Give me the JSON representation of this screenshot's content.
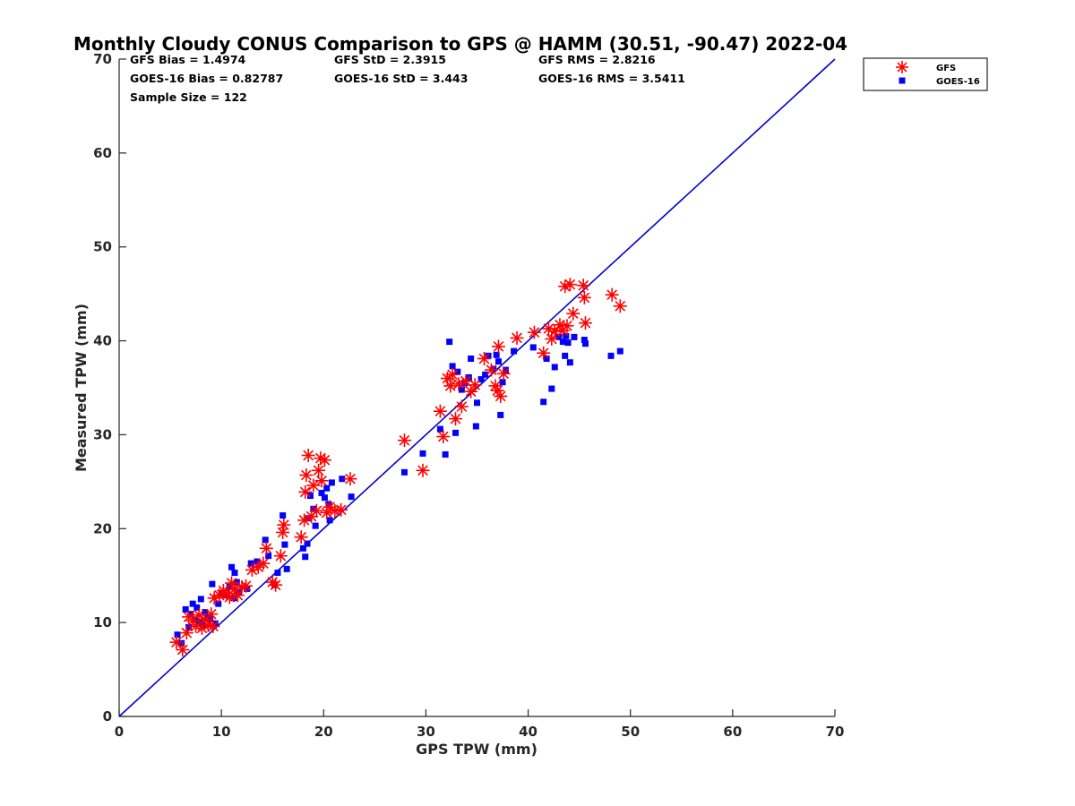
{
  "chart_data": {
    "type": "scatter",
    "title": "Monthly Cloudy CONUS Comparison to GPS @ HAMM (30.51, -90.47) 2022-04",
    "xlabel": "GPS TPW (mm)",
    "ylabel": "Measured TPW (mm)",
    "xlim": [
      0,
      70
    ],
    "ylim": [
      0,
      70
    ],
    "xticks": [
      "0",
      "10",
      "20",
      "30",
      "40",
      "50",
      "60",
      "70"
    ],
    "yticks": [
      "0",
      "10",
      "20",
      "30",
      "40",
      "50",
      "60",
      "70"
    ],
    "stats": {
      "gfs_bias": "GFS Bias = 1.4974",
      "gfs_std": "GFS StD = 2.3915",
      "gfs_rms": "GFS RMS = 2.8216",
      "goes_bias": "GOES-16 Bias = 0.82787",
      "goes_std": "GOES-16 StD = 3.443",
      "goes_rms": "GOES-16 RMS = 3.5411",
      "sample_size": "Sample Size = 122"
    },
    "legend": [
      "GFS",
      "GOES-16"
    ],
    "reference_line": {
      "from": [
        0,
        0
      ],
      "to": [
        70,
        70
      ],
      "color": "#0000cc"
    },
    "series": [
      {
        "name": "GFS",
        "marker": "asterisk",
        "color": "#ff0000",
        "points": [
          [
            5.6,
            7.9
          ],
          [
            6.2,
            7.1
          ],
          [
            6.6,
            8.9
          ],
          [
            6.8,
            10.6
          ],
          [
            7.2,
            10.2
          ],
          [
            7.5,
            9.6
          ],
          [
            7.8,
            10.8
          ],
          [
            8.1,
            9.4
          ],
          [
            8.4,
            10.3
          ],
          [
            8.7,
            9.7
          ],
          [
            9.0,
            10.9
          ],
          [
            9.2,
            9.6
          ],
          [
            9.3,
            12.6
          ],
          [
            9.8,
            12.9
          ],
          [
            10.2,
            13.4
          ],
          [
            10.5,
            13.1
          ],
          [
            10.8,
            12.7
          ],
          [
            11.0,
            14.2
          ],
          [
            11.3,
            13.6
          ],
          [
            11.6,
            12.9
          ],
          [
            12.0,
            13.8
          ],
          [
            12.4,
            13.9
          ],
          [
            13.0,
            15.6
          ],
          [
            13.6,
            15.9
          ],
          [
            14.1,
            16.3
          ],
          [
            14.4,
            17.9
          ],
          [
            15.0,
            14.3
          ],
          [
            15.3,
            14.0
          ],
          [
            15.8,
            17.1
          ],
          [
            16.0,
            19.6
          ],
          [
            16.1,
            20.4
          ],
          [
            17.8,
            19.1
          ],
          [
            18.1,
            20.9
          ],
          [
            18.2,
            23.9
          ],
          [
            18.3,
            25.7
          ],
          [
            18.5,
            27.8
          ],
          [
            18.8,
            21.3
          ],
          [
            19.0,
            24.6
          ],
          [
            19.3,
            21.9
          ],
          [
            19.5,
            26.2
          ],
          [
            19.7,
            27.5
          ],
          [
            19.8,
            25.1
          ],
          [
            20.1,
            27.3
          ],
          [
            20.3,
            21.7
          ],
          [
            20.6,
            22.3
          ],
          [
            21.1,
            21.9
          ],
          [
            21.7,
            22.0
          ],
          [
            22.6,
            25.3
          ],
          [
            27.9,
            29.4
          ],
          [
            29.7,
            26.2
          ],
          [
            31.4,
            32.5
          ],
          [
            31.7,
            29.8
          ],
          [
            32.1,
            36.0
          ],
          [
            32.4,
            35.2
          ],
          [
            32.6,
            36.4
          ],
          [
            32.9,
            31.7
          ],
          [
            33.2,
            35.4
          ],
          [
            33.5,
            33.0
          ],
          [
            33.9,
            35.7
          ],
          [
            34.4,
            34.6
          ],
          [
            34.8,
            35.3
          ],
          [
            35.7,
            38.1
          ],
          [
            36.4,
            36.9
          ],
          [
            36.8,
            35.2
          ],
          [
            37.0,
            34.7
          ],
          [
            37.1,
            39.4
          ],
          [
            37.3,
            34.1
          ],
          [
            37.6,
            36.5
          ],
          [
            38.9,
            40.3
          ],
          [
            40.6,
            40.9
          ],
          [
            41.5,
            38.7
          ],
          [
            42.0,
            41.3
          ],
          [
            42.3,
            40.2
          ],
          [
            42.6,
            41.0
          ],
          [
            43.1,
            41.7
          ],
          [
            43.4,
            41.1
          ],
          [
            43.6,
            45.8
          ],
          [
            43.8,
            41.6
          ],
          [
            44.1,
            46.0
          ],
          [
            44.4,
            42.9
          ],
          [
            45.4,
            45.9
          ],
          [
            45.5,
            44.6
          ],
          [
            45.6,
            41.9
          ],
          [
            48.2,
            44.9
          ],
          [
            49.0,
            43.7
          ]
        ]
      },
      {
        "name": "GOES-16",
        "marker": "square",
        "color": "#0000ff",
        "points": [
          [
            5.7,
            8.7
          ],
          [
            6.1,
            7.8
          ],
          [
            6.5,
            11.4
          ],
          [
            6.8,
            9.5
          ],
          [
            7.0,
            10.9
          ],
          [
            7.2,
            12.0
          ],
          [
            7.4,
            10.3
          ],
          [
            7.6,
            11.6
          ],
          [
            7.9,
            10.1
          ],
          [
            8.0,
            12.5
          ],
          [
            8.2,
            9.7
          ],
          [
            8.4,
            11.1
          ],
          [
            8.6,
            10.6
          ],
          [
            8.9,
            10.4
          ],
          [
            9.1,
            14.1
          ],
          [
            9.4,
            9.9
          ],
          [
            9.7,
            12.0
          ],
          [
            10.0,
            13.1
          ],
          [
            10.4,
            12.9
          ],
          [
            10.8,
            13.8
          ],
          [
            11.0,
            15.9
          ],
          [
            11.2,
            12.6
          ],
          [
            11.3,
            15.3
          ],
          [
            11.5,
            14.3
          ],
          [
            11.7,
            13.3
          ],
          [
            12.5,
            13.6
          ],
          [
            12.9,
            16.3
          ],
          [
            13.5,
            16.5
          ],
          [
            14.3,
            18.8
          ],
          [
            14.6,
            17.1
          ],
          [
            15.2,
            14.0
          ],
          [
            15.5,
            15.3
          ],
          [
            16.0,
            21.4
          ],
          [
            16.2,
            18.3
          ],
          [
            16.4,
            15.7
          ],
          [
            18.0,
            17.9
          ],
          [
            18.2,
            17.0
          ],
          [
            18.4,
            18.4
          ],
          [
            18.5,
            21.1
          ],
          [
            18.7,
            23.5
          ],
          [
            19.0,
            22.1
          ],
          [
            19.2,
            20.3
          ],
          [
            19.8,
            23.8
          ],
          [
            20.1,
            23.3
          ],
          [
            20.3,
            24.3
          ],
          [
            20.5,
            22.6
          ],
          [
            20.6,
            20.9
          ],
          [
            20.8,
            24.9
          ],
          [
            21.8,
            25.3
          ],
          [
            22.7,
            23.4
          ],
          [
            27.9,
            26.0
          ],
          [
            29.7,
            28.0
          ],
          [
            31.4,
            30.6
          ],
          [
            31.9,
            27.9
          ],
          [
            32.3,
            39.9
          ],
          [
            32.6,
            37.3
          ],
          [
            32.9,
            30.2
          ],
          [
            33.1,
            36.7
          ],
          [
            33.5,
            34.8
          ],
          [
            33.8,
            35.5
          ],
          [
            34.2,
            36.1
          ],
          [
            34.4,
            38.1
          ],
          [
            34.9,
            30.9
          ],
          [
            35.0,
            33.4
          ],
          [
            35.4,
            35.9
          ],
          [
            35.8,
            36.4
          ],
          [
            36.1,
            38.4
          ],
          [
            36.6,
            37.0
          ],
          [
            36.9,
            38.5
          ],
          [
            37.1,
            37.8
          ],
          [
            37.3,
            32.1
          ],
          [
            37.5,
            35.6
          ],
          [
            37.8,
            36.9
          ],
          [
            38.6,
            38.9
          ],
          [
            40.5,
            39.3
          ],
          [
            41.5,
            33.5
          ],
          [
            41.8,
            38.1
          ],
          [
            42.3,
            34.9
          ],
          [
            42.6,
            37.2
          ],
          [
            43.0,
            40.4
          ],
          [
            43.4,
            39.9
          ],
          [
            43.6,
            38.4
          ],
          [
            43.7,
            40.5
          ],
          [
            43.9,
            39.8
          ],
          [
            44.1,
            37.7
          ],
          [
            44.5,
            40.4
          ],
          [
            45.5,
            40.1
          ],
          [
            45.6,
            39.7
          ],
          [
            48.1,
            38.4
          ],
          [
            49.0,
            38.9
          ]
        ]
      }
    ]
  }
}
